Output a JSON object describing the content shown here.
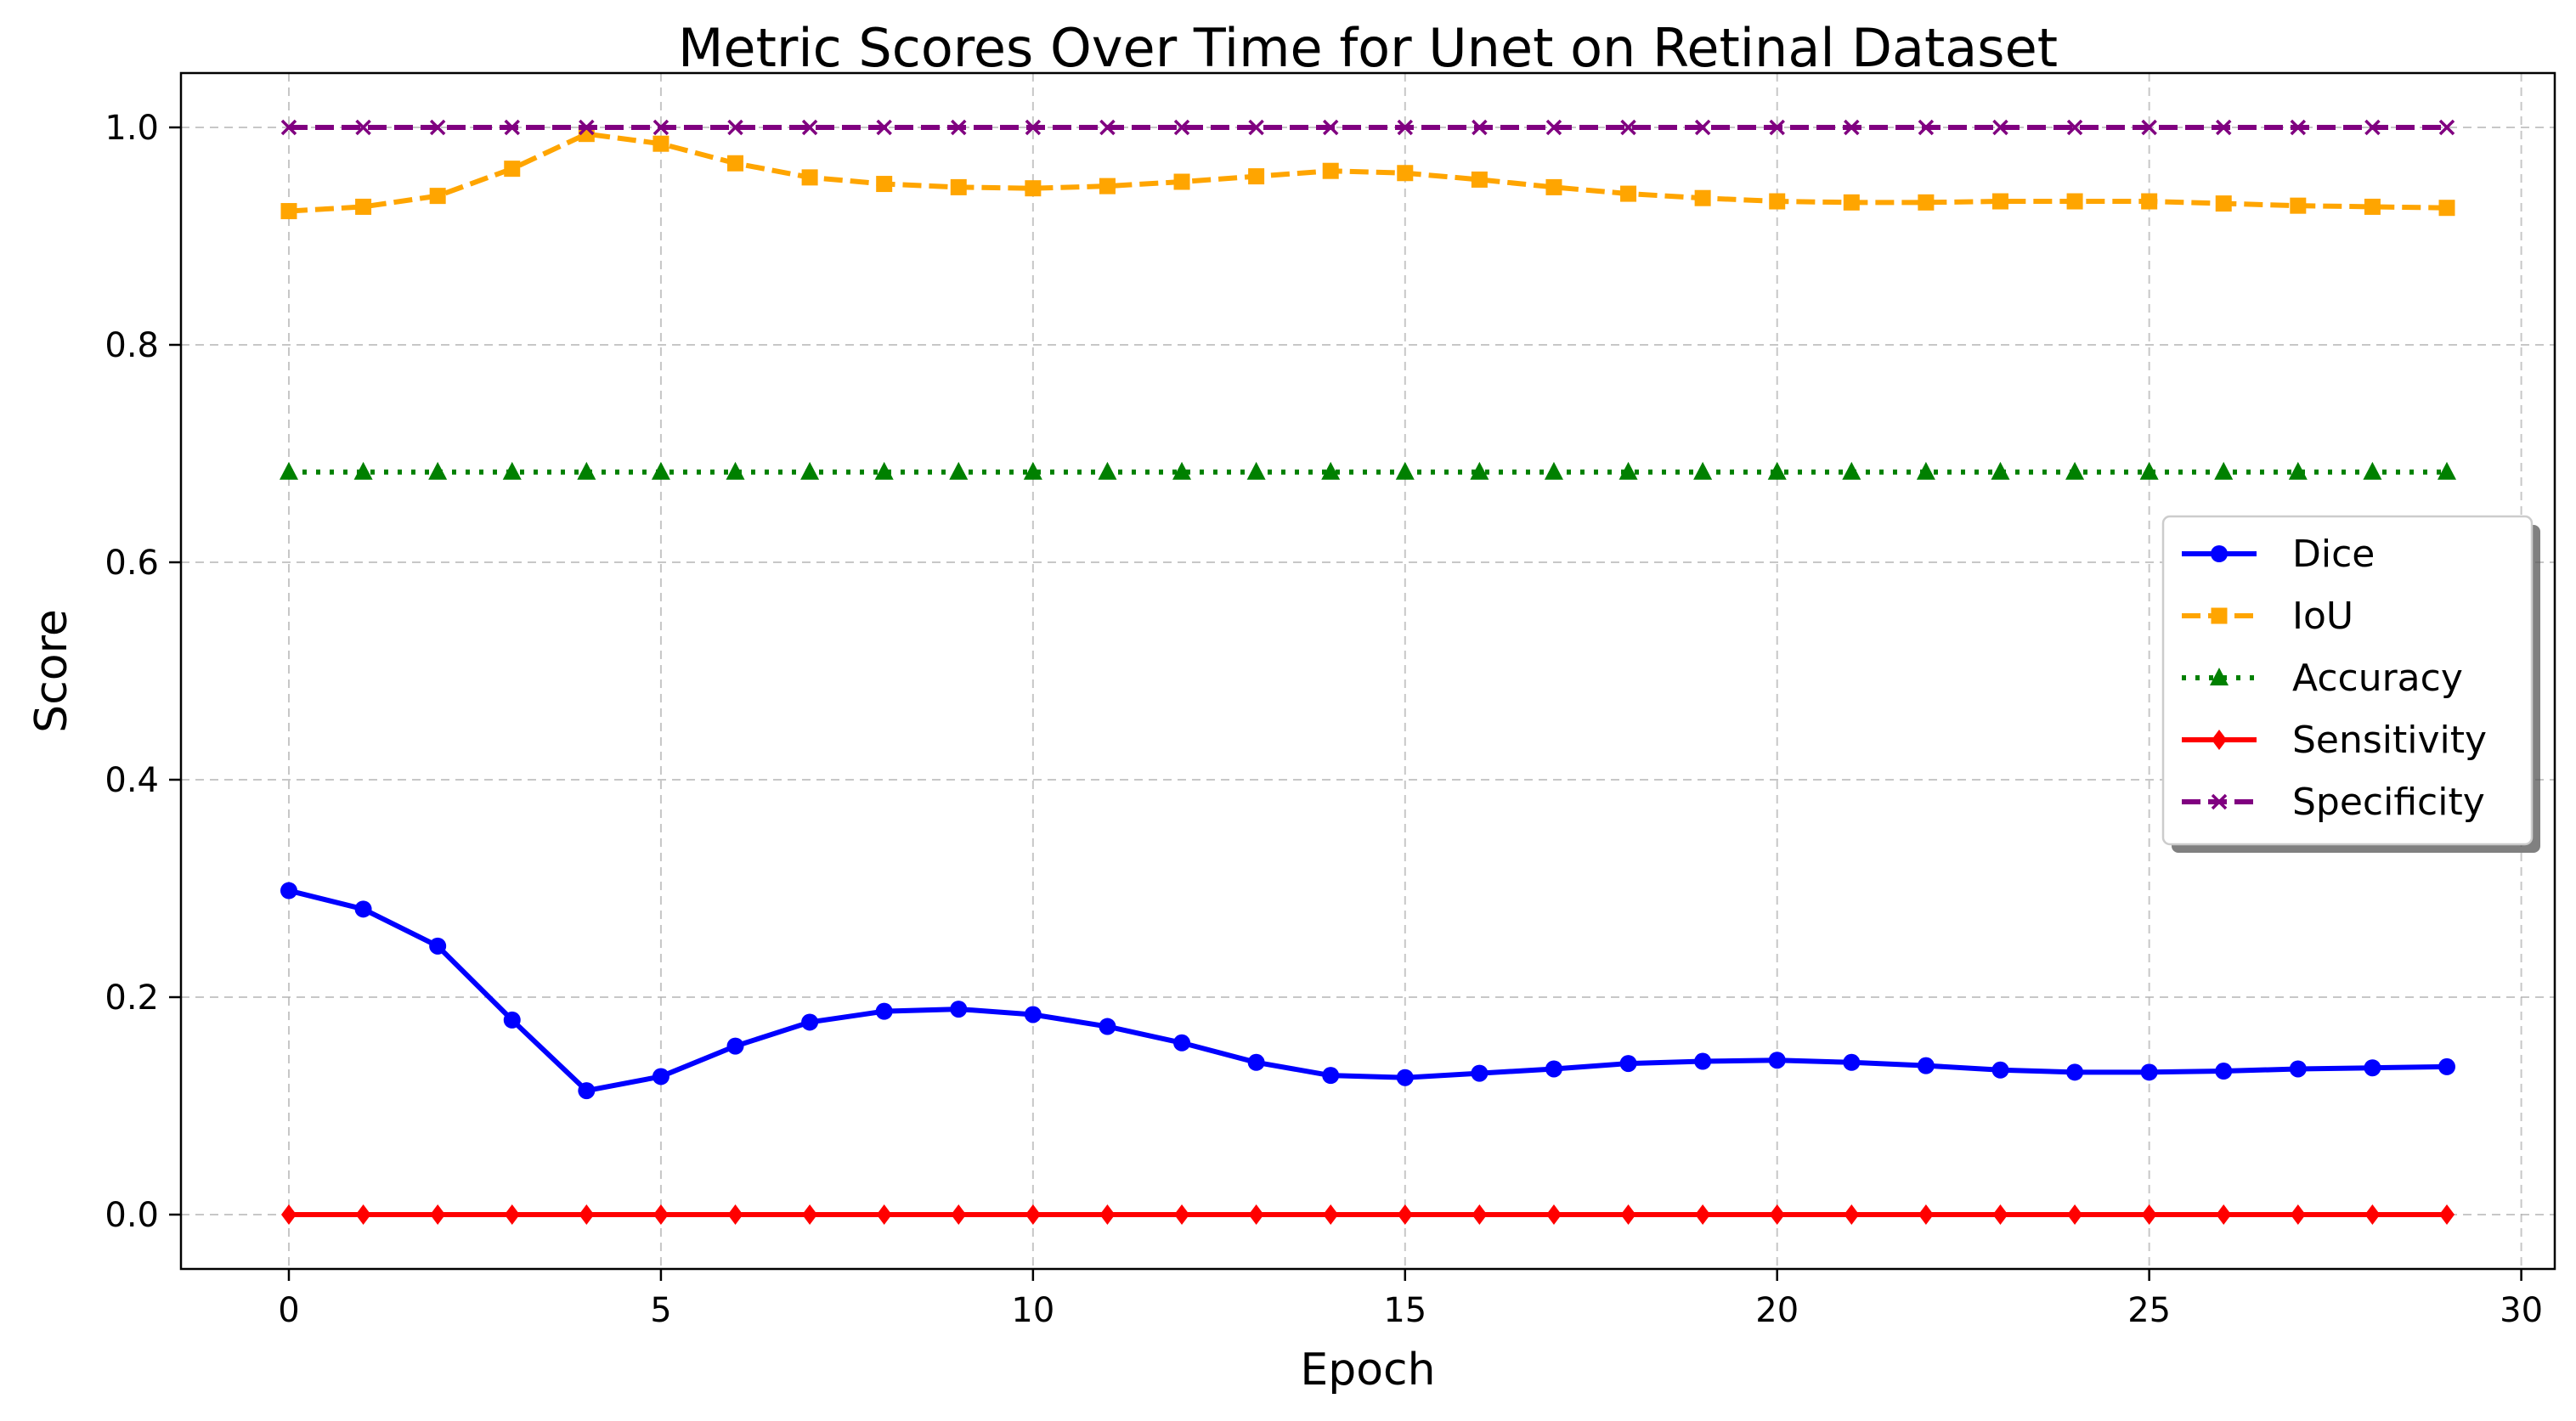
{
  "chart_data": {
    "type": "line",
    "title": "Metric Scores Over Time for Unet on Retinal Dataset",
    "xlabel": "Epoch",
    "ylabel": "Score",
    "xlim": [
      -1.45,
      30.45
    ],
    "ylim": [
      -0.05,
      1.05
    ],
    "xticks": [
      0,
      5,
      10,
      15,
      20,
      25,
      30
    ],
    "xtick_labels": [
      "0",
      "5",
      "10",
      "15",
      "20",
      "25",
      "30"
    ],
    "yticks": [
      0.0,
      0.2,
      0.4,
      0.6,
      0.8,
      1.0
    ],
    "ytick_labels": [
      "0.0",
      "0.2",
      "0.4",
      "0.6",
      "0.8",
      "1.0"
    ],
    "grid": true,
    "legend_position": "center-right",
    "x": [
      0,
      1,
      2,
      3,
      4,
      5,
      6,
      7,
      8,
      9,
      10,
      11,
      12,
      13,
      14,
      15,
      16,
      17,
      18,
      19,
      20,
      21,
      22,
      23,
      24,
      25,
      26,
      27,
      28,
      29
    ],
    "series": [
      {
        "name": "Dice",
        "color": "#0000ff",
        "line_style": "solid",
        "marker": "circle",
        "values": [
          0.298,
          0.281,
          0.247,
          0.179,
          0.114,
          0.127,
          0.155,
          0.177,
          0.187,
          0.189,
          0.184,
          0.173,
          0.158,
          0.14,
          0.128,
          0.126,
          0.13,
          0.134,
          0.139,
          0.141,
          0.142,
          0.14,
          0.137,
          0.133,
          0.131,
          0.131,
          0.132,
          0.134,
          0.135,
          0.136
        ]
      },
      {
        "name": "IoU",
        "color": "#ffa500",
        "line_style": "dashed",
        "marker": "square",
        "values": [
          0.923,
          0.927,
          0.937,
          0.962,
          0.994,
          0.985,
          0.967,
          0.954,
          0.948,
          0.945,
          0.944,
          0.946,
          0.95,
          0.955,
          0.96,
          0.958,
          0.952,
          0.945,
          0.939,
          0.935,
          0.932,
          0.931,
          0.931,
          0.932,
          0.932,
          0.932,
          0.93,
          0.928,
          0.927,
          0.926
        ]
      },
      {
        "name": "Accuracy",
        "color": "#008000",
        "line_style": "dotted",
        "marker": "triangle",
        "values": [
          0.683,
          0.683,
          0.683,
          0.683,
          0.683,
          0.683,
          0.683,
          0.683,
          0.683,
          0.683,
          0.683,
          0.683,
          0.683,
          0.683,
          0.683,
          0.683,
          0.683,
          0.683,
          0.683,
          0.683,
          0.683,
          0.683,
          0.683,
          0.683,
          0.683,
          0.683,
          0.683,
          0.683,
          0.683,
          0.683
        ]
      },
      {
        "name": "Sensitivity",
        "color": "#ff0000",
        "line_style": "solid",
        "marker": "diamond",
        "values": [
          0.0,
          0.0,
          0.0,
          0.0,
          0.0,
          0.0,
          0.0,
          0.0,
          0.0,
          0.0,
          0.0,
          0.0,
          0.0,
          0.0,
          0.0,
          0.0,
          0.0,
          0.0,
          0.0,
          0.0,
          0.0,
          0.0,
          0.0,
          0.0,
          0.0,
          0.0,
          0.0,
          0.0,
          0.0,
          0.0
        ]
      },
      {
        "name": "Specificity",
        "color": "#800080",
        "line_style": "dashed",
        "marker": "x",
        "values": [
          1.0,
          1.0,
          1.0,
          1.0,
          1.0,
          1.0,
          1.0,
          1.0,
          1.0,
          1.0,
          1.0,
          1.0,
          1.0,
          1.0,
          1.0,
          1.0,
          1.0,
          1.0,
          1.0,
          1.0,
          1.0,
          1.0,
          1.0,
          1.0,
          1.0,
          1.0,
          1.0,
          1.0,
          1.0,
          1.0
        ]
      }
    ]
  }
}
